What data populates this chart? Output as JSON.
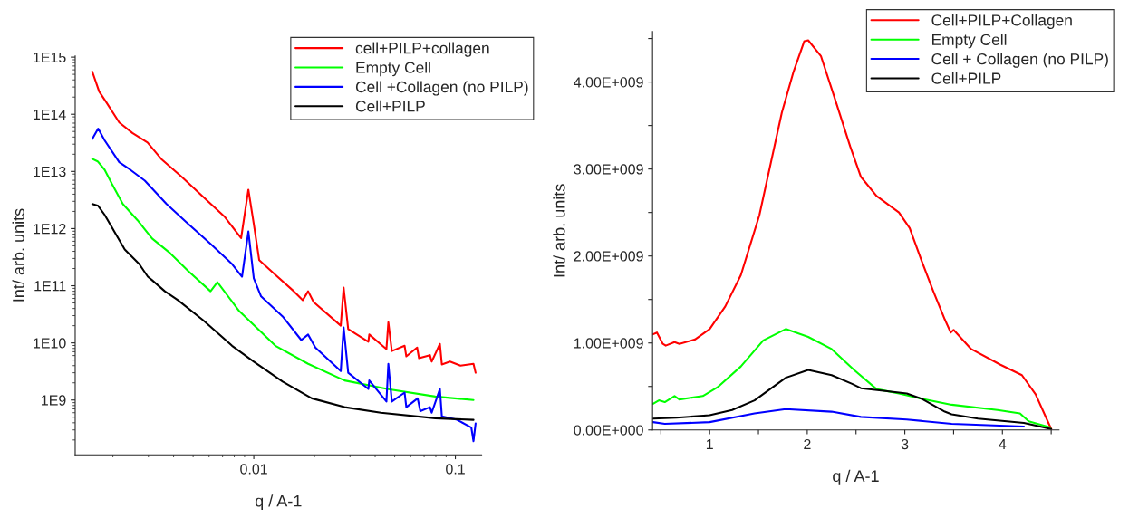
{
  "chart_data": [
    {
      "type": "line",
      "xlabel": "q / A-1",
      "ylabel": "Int/ arb. units",
      "log": "xy",
      "xlim": [
        0.0013,
        0.135
      ],
      "ylim": [
        110000000.0,
        1050000000000000.0
      ],
      "xticks": [
        0.01,
        0.1
      ],
      "yticks": [
        {
          "value": 1000000000.0,
          "label": "1E9"
        },
        {
          "value": 10000000000.0,
          "label": "1E10"
        },
        {
          "value": 100000000000.0,
          "label": "1E11"
        },
        {
          "value": 1000000000000.0,
          "label": "1E12"
        },
        {
          "value": 10000000000000.0,
          "label": "1E13"
        },
        {
          "value": 100000000000000.0,
          "label": "1E14"
        },
        {
          "value": 1000000000000000.0,
          "label": "1E15"
        }
      ],
      "legend": "top right",
      "series": [
        {
          "name": "cell+PILP+collagen",
          "color": "#ff0000",
          "x": [
            0.00158,
            0.00171,
            0.00186,
            0.00215,
            0.0025,
            0.00297,
            0.00347,
            0.0044,
            0.0056,
            0.00718,
            0.00865,
            0.0094,
            0.01,
            0.01064,
            0.0128,
            0.0158,
            0.0175,
            0.0186,
            0.0198,
            0.027,
            0.0279,
            0.0294,
            0.037,
            0.0374,
            0.0455,
            0.0465,
            0.0484,
            0.056,
            0.0571,
            0.0646,
            0.066,
            0.0748,
            0.0763,
            0.0838,
            0.0857,
            0.094,
            0.106,
            0.123,
            0.126
          ],
          "values": [
            560000000000000.0,
            250000000000000.0,
            160000000000000.0,
            72000000000000.0,
            47000000000000.0,
            32000000000000.0,
            16600000000000.0,
            8000000000000.0,
            3600000000000.0,
            1600000000000.0,
            680000000000.0,
            4800000000000.0,
            1200000000000.0,
            280000000000.0,
            155000000000.0,
            80000000000.0,
            56000000000.0,
            80000000000.0,
            52000000000.0,
            20000000000.0,
            93000000000.0,
            17400000000.0,
            10500000000.0,
            14000000000.0,
            7800000000.0,
            23000000000.0,
            7200000000.0,
            8900000000.0,
            5800000000.0,
            8300000000.0,
            5400000000.0,
            6100000000.0,
            4700000000.0,
            9600000000.0,
            4200000000.0,
            4700000000.0,
            4000000000.0,
            4300000000.0,
            3000000000.0
          ]
        },
        {
          "name": "Empty Cell",
          "color": "#00ff00",
          "x": [
            0.00158,
            0.00168,
            0.00182,
            0.00198,
            0.00224,
            0.00265,
            0.00313,
            0.00385,
            0.00474,
            0.0061,
            0.0066,
            0.00847,
            0.0128,
            0.0186,
            0.0282,
            0.0465,
            0.0795,
            0.123
          ],
          "values": [
            16600000000000.0,
            15000000000000.0,
            10700000000000.0,
            6000000000000.0,
            2700000000000.0,
            1400000000000.0,
            670000000000.0,
            370000000000.0,
            180000000000.0,
            80000000000.0,
            115000000000.0,
            36000000000.0,
            8900000000.0,
            4300000000.0,
            2200000000.0,
            1550000000.0,
            1150000000.0,
            1000000000.0
          ]
        },
        {
          "name": "Cell +Collagen (no PILP)",
          "color": "#0000ff",
          "x": [
            0.00158,
            0.00169,
            0.00182,
            0.00215,
            0.00244,
            0.00288,
            0.00369,
            0.00474,
            0.0061,
            0.0078,
            0.00874,
            0.0094,
            0.01,
            0.01087,
            0.0139,
            0.0172,
            0.0186,
            0.0202,
            0.027,
            0.0279,
            0.0294,
            0.037,
            0.0374,
            0.0455,
            0.0465,
            0.0484,
            0.056,
            0.0571,
            0.065,
            0.067,
            0.0748,
            0.0763,
            0.0838,
            0.0857,
            0.102,
            0.12,
            0.123,
            0.126
          ],
          "values": [
            37000000000000.0,
            56000000000000.0,
            35000000000000.0,
            14500000000000.0,
            10700000000000.0,
            6900000000000.0,
            2700000000000.0,
            1200000000000.0,
            540000000000.0,
            240000000000.0,
            144000000000.0,
            890000000000.0,
            135000000000.0,
            65000000000.0,
            29000000000.0,
            11200000000.0,
            14000000000.0,
            8300000000.0,
            3200000000.0,
            18600000000.0,
            3000000000.0,
            1560000000.0,
            2200000000.0,
            940000000.0,
            4300000000.0,
            940000000.0,
            1350000000.0,
            750000000.0,
            1070000000.0,
            640000000.0,
            750000000.0,
            600000000.0,
            1560000000.0,
            520000000.0,
            450000000.0,
            330000000.0,
            190000000.0,
            390000000.0
          ]
        },
        {
          "name": "Cell+PILP",
          "color": "#000000",
          "x": [
            0.00158,
            0.00169,
            0.00182,
            0.00198,
            0.00229,
            0.0027,
            0.00298,
            0.00313,
            0.00362,
            0.0042,
            0.0056,
            0.0078,
            0.01,
            0.0139,
            0.0194,
            0.0282,
            0.0427,
            0.0795,
            0.123
          ],
          "values": [
            2700000000000.0,
            2500000000000.0,
            1740000000000.0,
            1040000000000.0,
            430000000000.0,
            240000000000.0,
            144000000000.0,
            125000000000.0,
            80000000000.0,
            56000000000.0,
            25000000000.0,
            8900000000.0,
            4700000000.0,
            2100000000.0,
            1070000000.0,
            750000000.0,
            600000000.0,
            480000000.0,
            450000000.0
          ]
        }
      ]
    },
    {
      "type": "line",
      "xlabel": "q / A-1",
      "ylabel": "Int/ arb. units",
      "xlim": [
        0.415,
        4.58
      ],
      "ylim": [
        0,
        4580000000.0
      ],
      "xticks": [
        {
          "value": 0.5,
          "label": null
        },
        1,
        {
          "value": 1.5,
          "label": null
        },
        2,
        {
          "value": 2.5,
          "label": null
        },
        3,
        {
          "value": 3.5,
          "label": null
        },
        4,
        {
          "value": 4.5,
          "label": null
        }
      ],
      "yticks": [
        {
          "value": 0,
          "label": "0.00E+000"
        },
        {
          "value": 500000000.0,
          "label": null
        },
        {
          "value": 1000000000.0,
          "label": "1.00E+009"
        },
        {
          "value": 1500000000.0,
          "label": null
        },
        {
          "value": 2000000000.0,
          "label": "2.00E+009"
        },
        {
          "value": 2500000000.0,
          "label": null
        },
        {
          "value": 3000000000.0,
          "label": "3.00E+009"
        },
        {
          "value": 3500000000.0,
          "label": null
        },
        {
          "value": 4000000000.0,
          "label": "4.00E+009"
        },
        {
          "value": 4500000000.0,
          "label": null
        }
      ],
      "legend": "top right",
      "series": [
        {
          "name": "Cell+PILP+Collagen",
          "color": "#ff0000",
          "x": [
            0.42,
            0.46,
            0.52,
            0.55,
            0.64,
            0.69,
            0.85,
            1.0,
            1.16,
            1.32,
            1.51,
            1.74,
            1.86,
            1.97,
            2.01,
            2.14,
            2.28,
            2.44,
            2.55,
            2.71,
            2.94,
            3.05,
            3.17,
            3.29,
            3.41,
            3.47,
            3.5,
            3.68,
            3.98,
            4.2,
            4.34,
            4.5
          ],
          "values": [
            1100000000.0,
            1120000000.0,
            990000000.0,
            970000000.0,
            1010000000.0,
            990000000.0,
            1040000000.0,
            1160000000.0,
            1420000000.0,
            1780000000.0,
            2470000000.0,
            3650000000.0,
            4120000000.0,
            4470000000.0,
            4480000000.0,
            4300000000.0,
            3820000000.0,
            3260000000.0,
            2910000000.0,
            2690000000.0,
            2500000000.0,
            2320000000.0,
            1950000000.0,
            1600000000.0,
            1270000000.0,
            1120000000.0,
            1150000000.0,
            930000000.0,
            750000000.0,
            630000000.0,
            410000000.0,
            10000000.0
          ]
        },
        {
          "name": "Empty Cell",
          "color": "#00ff00",
          "x": [
            0.42,
            0.48,
            0.54,
            0.64,
            0.69,
            0.93,
            1.08,
            1.32,
            1.55,
            1.78,
            2.01,
            2.25,
            2.48,
            2.71,
            2.94,
            3.17,
            3.48,
            3.95,
            4.18,
            4.27,
            4.49
          ],
          "values": [
            300000000.0,
            340000000.0,
            320000000.0,
            390000000.0,
            350000000.0,
            390000000.0,
            490000000.0,
            730000000.0,
            1030000000.0,
            1160000000.0,
            1070000000.0,
            930000000.0,
            690000000.0,
            470000000.0,
            420000000.0,
            360000000.0,
            290000000.0,
            230000000.0,
            190000000.0,
            100000000.0,
            30000000.0
          ]
        },
        {
          "name": "Cell + Collagen (no PILP)",
          "color": "#0000ff",
          "x": [
            0.42,
            0.54,
            1.0,
            1.46,
            1.78,
            2.25,
            2.55,
            3.02,
            3.48,
            4.22
          ],
          "values": [
            90000000.0,
            70000000.0,
            90000000.0,
            190000000.0,
            240000000.0,
            210000000.0,
            150000000.0,
            120000000.0,
            70000000.0,
            40000000.0
          ]
        },
        {
          "name": "Cell+PILP",
          "color": "#000000",
          "x": [
            0.42,
            0.66,
            1.0,
            1.23,
            1.46,
            1.78,
            2.01,
            2.25,
            2.46,
            2.55,
            2.78,
            3.02,
            3.17,
            3.41,
            3.48,
            3.75,
            4.22,
            4.5
          ],
          "values": [
            130000000.0,
            140000000.0,
            170000000.0,
            230000000.0,
            340000000.0,
            600000000.0,
            690000000.0,
            630000000.0,
            530000000.0,
            480000000.0,
            450000000.0,
            420000000.0,
            360000000.0,
            210000000.0,
            180000000.0,
            130000000.0,
            80000000.0,
            10000000.0
          ]
        }
      ]
    }
  ]
}
